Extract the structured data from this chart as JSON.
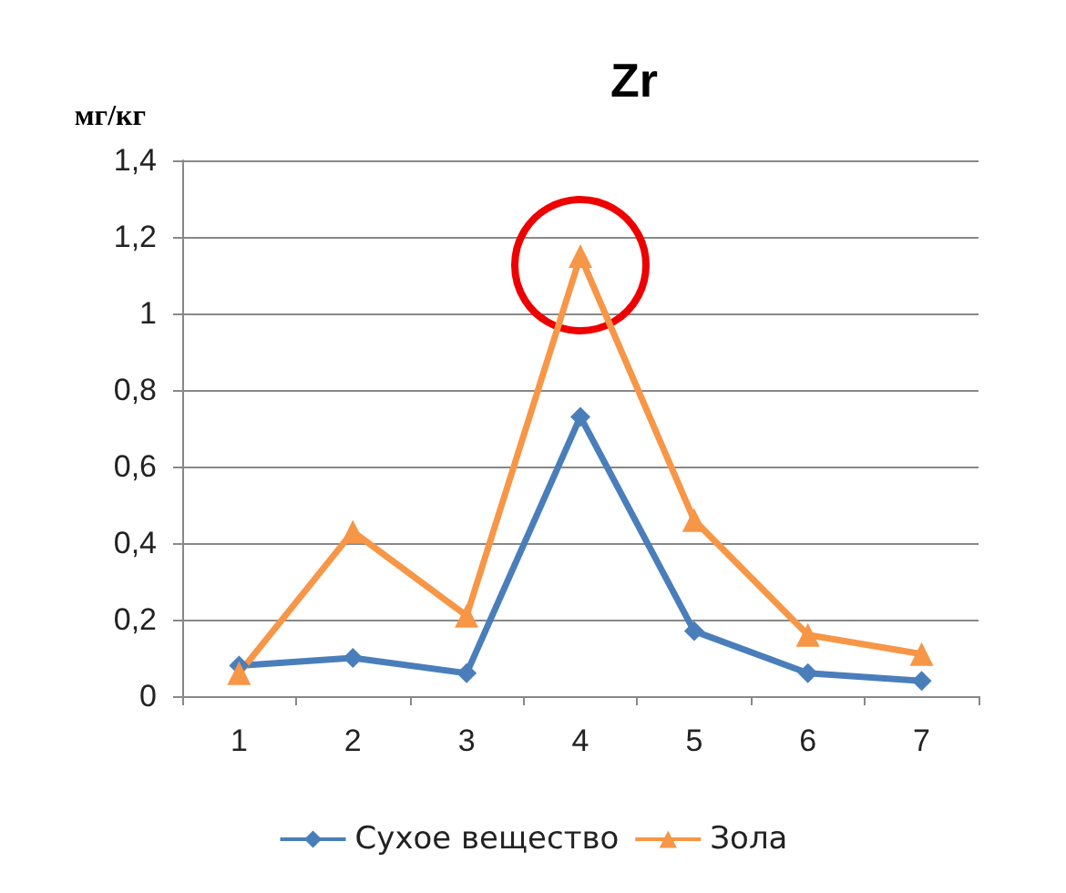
{
  "chart_data": {
    "type": "line",
    "title": "Zr",
    "ylabel": "мг/кг",
    "categories": [
      "1",
      "2",
      "3",
      "4",
      "5",
      "6",
      "7"
    ],
    "series": [
      {
        "name": "Сухое вещество",
        "color": "#4a7ebb",
        "marker": "diamond",
        "values": [
          0.08,
          0.1,
          0.06,
          0.73,
          0.17,
          0.06,
          0.04
        ]
      },
      {
        "name": "Зола",
        "color": "#f79646",
        "marker": "triangle",
        "values": [
          0.06,
          0.43,
          0.21,
          1.15,
          0.46,
          0.16,
          0.11
        ]
      }
    ],
    "ylim": [
      0,
      1.4
    ],
    "yticks": [
      0,
      {
        "value": 0.2,
        "label": "0,2"
      },
      {
        "value": 0.4,
        "label": "0,4"
      },
      {
        "value": 0.6,
        "label": "0,6"
      },
      {
        "value": 0.8,
        "label": "0,8"
      },
      1,
      {
        "value": 1.2,
        "label": "1,2"
      },
      {
        "value": 1.4,
        "label": "1,4"
      }
    ],
    "grid": "y",
    "legend": "bottom"
  }
}
